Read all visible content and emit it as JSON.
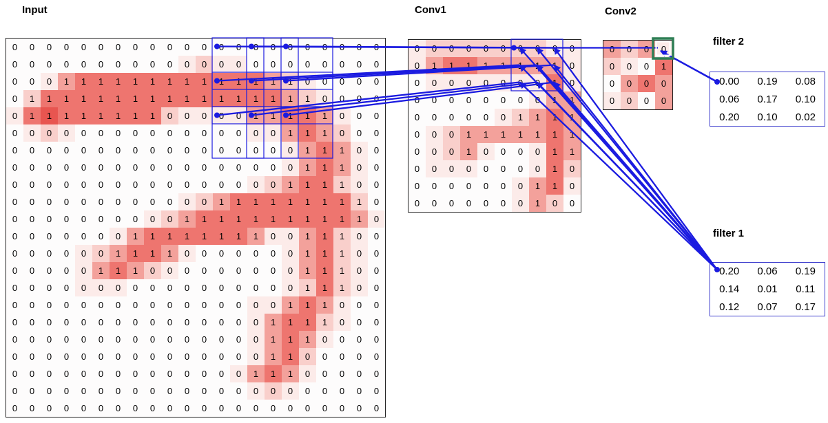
{
  "panels": {
    "input": {
      "title": "Input",
      "values": [
        "0000000000000000000000",
        "0000000000000000000000",
        "0001111111111111100000",
        "0111111111111111110000",
        "0111111110000011111000",
        "0000000000000000111000",
        "0000000000000000011100",
        "0000000000000000011100",
        "0000000000000000111100",
        "0000000000001111111110",
        "0000000000111111111110",
        "0000000111111110011100",
        "0000001111000000011100",
        "0000011100000000011100",
        "0000000000000000011100",
        "0000000000000000111000",
        "0000000000000001111000",
        "0000000000000001110000",
        "0000000000000001100000",
        "0000000000000011100000",
        "0000000000000000000000",
        "0000000000000000000000"
      ],
      "intensity": [
        "0000000000000000000000",
        "0000000000121100000000",
        "0013444444444443210000",
        "0244444444444444321000",
        "1454444442111133443100",
        "0121000000000011343200",
        "0000000000000000134310",
        "0000000000000000134310",
        "0000000000000012344210",
        "0000000000123444444420",
        "0000000012344444444431",
        "0000001344444431134210",
        "0000123443100000134210",
        "0000134321000000134210",
        "0000111000000000124210",
        "0000000000000011343100",
        "0000000000000013442100",
        "0000000000000013431000",
        "0000000000000013420000",
        "0000000000000134310000",
        "0000000000000012100000",
        "0000000000000000000000"
      ]
    },
    "conv1": {
      "title": "Conv1",
      "values": [
        "0000000000",
        "0111111110",
        "0000000010",
        "0000000011",
        "0000001111",
        "0001111111",
        "0001000011",
        "0000000010",
        "0000000110",
        "0000000100"
      ],
      "intensity": [
        "1222222211",
        "1344333331",
        "0111111141",
        "0000000133",
        "0000012343",
        "0123333343",
        "0123100143",
        "0111000142",
        "0000001341",
        "0000001320"
      ]
    },
    "conv2": {
      "title": "Conv2",
      "values": [
        "0000",
        "0001",
        "0000",
        "0000"
      ],
      "intensity": [
        "3231",
        "2104",
        "0343",
        "1203"
      ]
    }
  },
  "filters": {
    "filter2": {
      "title": "filter 2",
      "values": [
        [
          "0.00",
          "0.19",
          "0.08"
        ],
        [
          "0.06",
          "0.17",
          "0.10"
        ],
        [
          "0.20",
          "0.10",
          "0.02"
        ]
      ]
    },
    "filter1": {
      "title": "filter 1",
      "values": [
        [
          "0.20",
          "0.06",
          "0.19"
        ],
        [
          "0.14",
          "0.01",
          "0.11"
        ],
        [
          "0.12",
          "0.07",
          "0.17"
        ]
      ]
    }
  },
  "colors": {
    "heat": [
      "#fdfcfc",
      "#fcebe9",
      "#f9cfcb",
      "#f3a19b",
      "#ee756f",
      "#e85550"
    ],
    "line_blue": "#1b1be0",
    "filter_border": "#3c3ccc",
    "grid_border": "#222222",
    "highlight_green": "#2f7e55"
  }
}
